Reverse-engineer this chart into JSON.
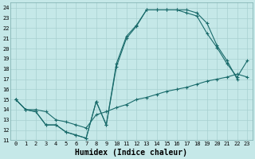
{
  "xlabel": "Humidex (Indice chaleur)",
  "xlim": [
    -0.5,
    23.5
  ],
  "ylim": [
    11,
    24.5
  ],
  "yticks": [
    11,
    12,
    13,
    14,
    15,
    16,
    17,
    18,
    19,
    20,
    21,
    22,
    23,
    24
  ],
  "xticks": [
    0,
    1,
    2,
    3,
    4,
    5,
    6,
    7,
    8,
    9,
    10,
    11,
    12,
    13,
    14,
    15,
    16,
    17,
    18,
    19,
    20,
    21,
    22,
    23
  ],
  "bg_color": "#c5e8e8",
  "line_color": "#1a6b6b",
  "grid_color": "#a8d0d0",
  "series1_x": [
    0,
    1,
    2,
    3,
    4,
    5,
    6,
    7,
    8,
    9,
    10,
    11,
    12,
    13,
    14,
    15,
    16,
    17,
    18,
    19,
    20,
    21,
    22
  ],
  "series1_y": [
    15,
    14,
    13.8,
    12.5,
    12.5,
    11.8,
    11.5,
    11.2,
    14.8,
    12.5,
    18.2,
    21.0,
    22.2,
    23.8,
    23.8,
    23.8,
    23.8,
    23.8,
    23.5,
    22.5,
    20.3,
    18.8,
    17.0
  ],
  "series2_x": [
    0,
    1,
    2,
    3,
    4,
    5,
    6,
    7,
    8,
    9,
    10,
    11,
    12,
    13,
    14,
    15,
    16,
    17,
    18,
    19,
    20,
    21,
    22,
    23
  ],
  "series2_y": [
    15,
    14,
    13.8,
    12.5,
    12.5,
    11.8,
    11.5,
    11.2,
    14.8,
    12.5,
    18.5,
    21.2,
    22.3,
    23.8,
    23.8,
    23.8,
    23.8,
    23.5,
    23.2,
    21.5,
    20.1,
    18.5,
    17.2,
    18.8
  ],
  "series3_x": [
    0,
    1,
    2,
    3,
    4,
    5,
    6,
    7,
    8,
    9,
    10,
    11,
    12,
    13,
    14,
    15,
    16,
    17,
    18,
    19,
    20,
    21,
    22,
    23
  ],
  "series3_y": [
    15.0,
    14.0,
    14.0,
    13.8,
    13.0,
    12.8,
    12.5,
    12.2,
    13.5,
    13.8,
    14.2,
    14.5,
    15.0,
    15.2,
    15.5,
    15.8,
    16.0,
    16.2,
    16.5,
    16.8,
    17.0,
    17.2,
    17.5,
    17.2
  ],
  "xlabel_fontsize": 7,
  "tick_fontsize": 5,
  "linewidth": 0.8,
  "marker": "+",
  "markersize": 2.5
}
